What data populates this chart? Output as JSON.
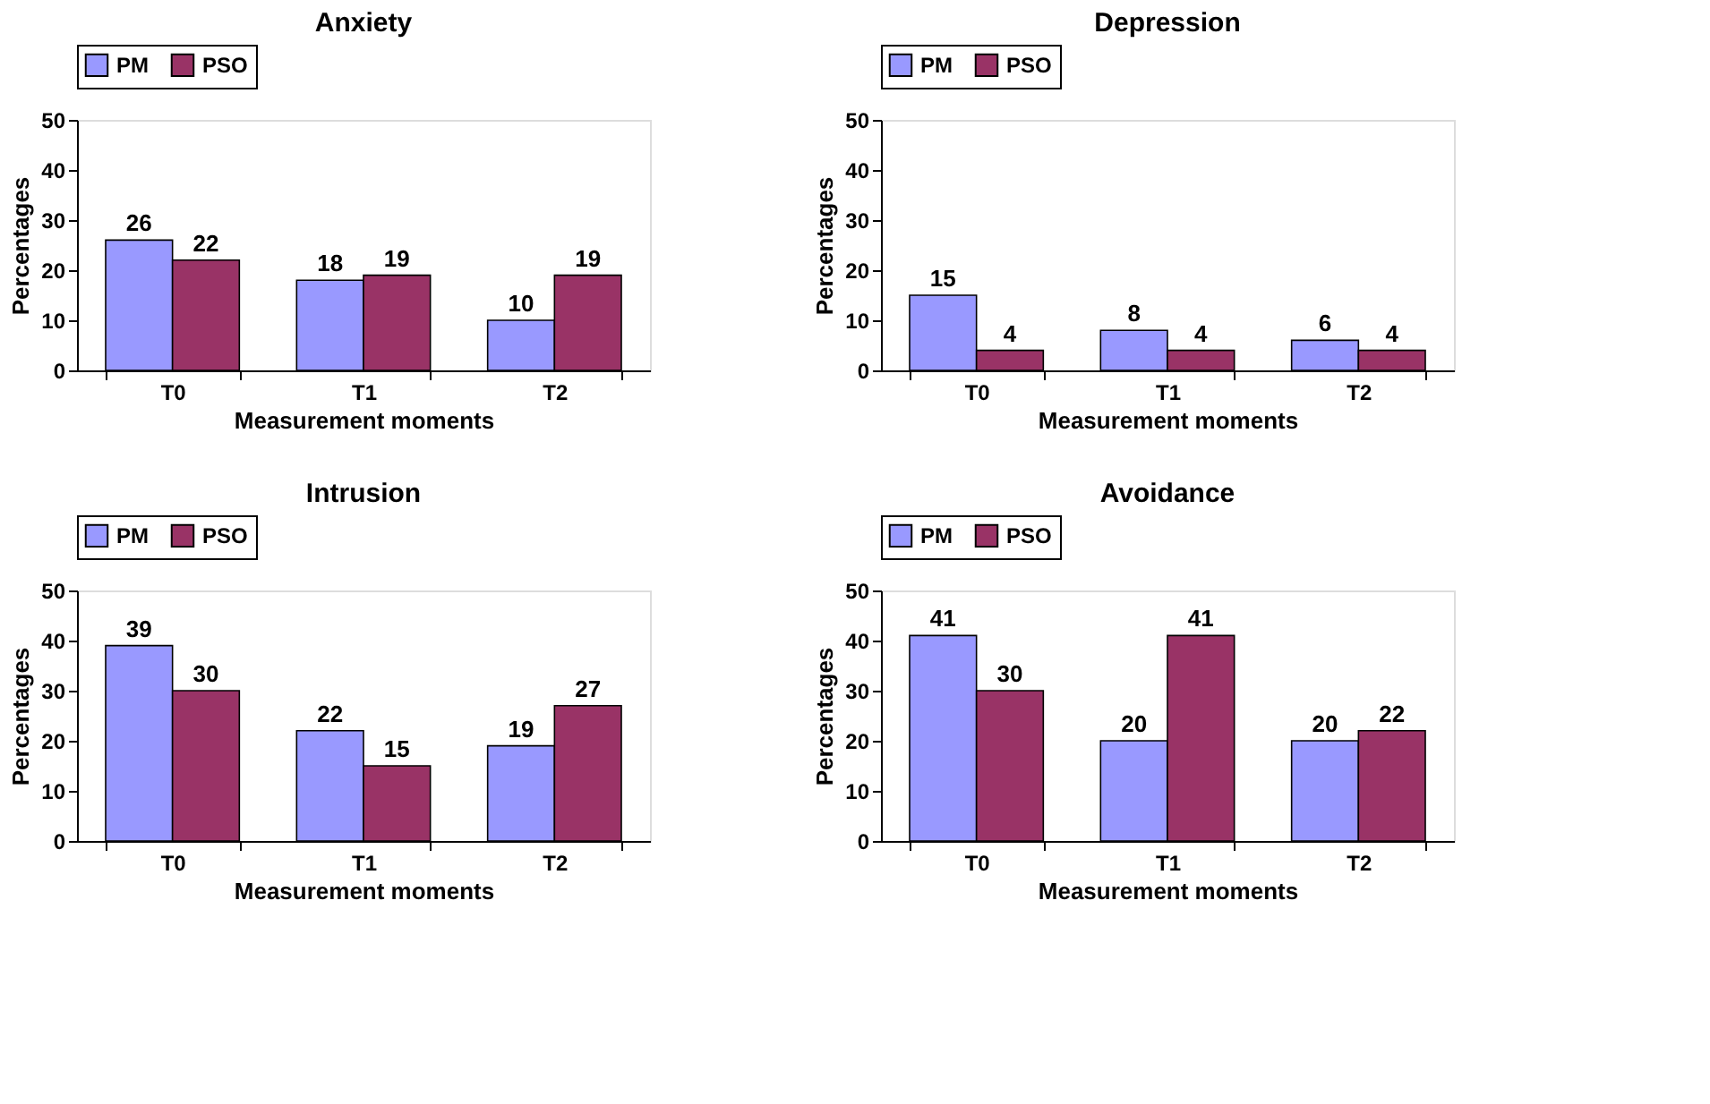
{
  "chart_data": [
    {
      "type": "bar",
      "title": "Anxiety",
      "xlabel": "Measurement moments",
      "ylabel": "Percentages",
      "categories": [
        "T0",
        "T1",
        "T2"
      ],
      "series": [
        {
          "name": "PM",
          "color": "#9999ff",
          "values": [
            26,
            18,
            10
          ]
        },
        {
          "name": "PSO",
          "color": "#993366",
          "values": [
            22,
            19,
            19
          ]
        }
      ],
      "ylim": [
        0,
        50
      ],
      "yticks": [
        0,
        10,
        20,
        30,
        40,
        50
      ],
      "data_labels": true,
      "legend": "top",
      "grid": false
    },
    {
      "type": "bar",
      "title": "Depression",
      "xlabel": "Measurement moments",
      "ylabel": "Percentages",
      "categories": [
        "T0",
        "T1",
        "T2"
      ],
      "series": [
        {
          "name": "PM",
          "color": "#9999ff",
          "values": [
            15,
            8,
            6
          ]
        },
        {
          "name": "PSO",
          "color": "#993366",
          "values": [
            4,
            4,
            4
          ]
        }
      ],
      "ylim": [
        0,
        50
      ],
      "yticks": [
        0,
        10,
        20,
        30,
        40,
        50
      ],
      "data_labels": true,
      "legend": "top",
      "grid": false
    },
    {
      "type": "bar",
      "title": "Intrusion",
      "xlabel": "Measurement moments",
      "ylabel": "Percentages",
      "categories": [
        "T0",
        "T1",
        "T2"
      ],
      "series": [
        {
          "name": "PM",
          "color": "#9999ff",
          "values": [
            39,
            22,
            19
          ]
        },
        {
          "name": "PSO",
          "color": "#993366",
          "values": [
            30,
            15,
            27
          ]
        }
      ],
      "ylim": [
        0,
        50
      ],
      "yticks": [
        0,
        10,
        20,
        30,
        40,
        50
      ],
      "data_labels": true,
      "legend": "top",
      "grid": false
    },
    {
      "type": "bar",
      "title": "Avoidance",
      "xlabel": "Measurement moments",
      "ylabel": "Percentages",
      "categories": [
        "T0",
        "T1",
        "T2"
      ],
      "series": [
        {
          "name": "PM",
          "color": "#9999ff",
          "values": [
            41,
            20,
            20
          ]
        },
        {
          "name": "PSO",
          "color": "#993366",
          "values": [
            30,
            41,
            22
          ]
        }
      ],
      "ylim": [
        0,
        50
      ],
      "yticks": [
        0,
        10,
        20,
        30,
        40,
        50
      ],
      "data_labels": true,
      "legend": "top",
      "grid": false
    }
  ]
}
